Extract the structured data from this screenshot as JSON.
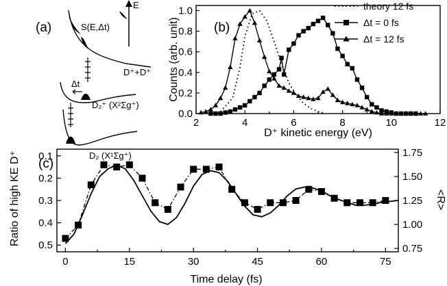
{
  "chart_data": [
    {
      "panel": "(a)",
      "type": "diagram",
      "labels": {
        "energy_axis": "E",
        "final_state": "S(E,Δt)",
        "asymptote": "D⁺+D⁺",
        "delay": "Δt",
        "ion_state": "D₂⁺ (X²Σg⁺)",
        "neutral_state": "D₂ (X¹Σg⁺)"
      }
    },
    {
      "panel": "(b)",
      "type": "line",
      "xlabel": "D⁺ kinetic energy (eV)",
      "ylabel": "Counts (arb. unit)",
      "xlim": [
        2,
        12
      ],
      "ylim": [
        0,
        1.05
      ],
      "xticks": [
        "2",
        "4",
        "6",
        "8",
        "10",
        "12"
      ],
      "yticks": [
        "0.0",
        "0.2",
        "0.4",
        "0.6",
        "0.8",
        "1.0"
      ],
      "legend_position": "top-right",
      "series": [
        {
          "name": "theory 12 fs",
          "style": "dotted",
          "x": [
            3.0,
            3.5,
            3.8,
            4.0,
            4.3,
            4.6,
            4.9,
            5.2,
            5.5,
            5.8,
            6.1,
            6.4,
            6.7,
            7.0,
            7.3
          ],
          "y": [
            0.02,
            0.15,
            0.45,
            0.75,
            0.97,
            1.0,
            0.9,
            0.7,
            0.48,
            0.3,
            0.18,
            0.1,
            0.05,
            0.02,
            0.0
          ]
        },
        {
          "name": "Δt = 0 fs",
          "marker": "square",
          "x": [
            2.6,
            2.8,
            3.0,
            3.2,
            3.4,
            3.6,
            3.8,
            4.0,
            4.2,
            4.4,
            4.6,
            4.8,
            5.0,
            5.2,
            5.4,
            5.5,
            5.6,
            5.8,
            6.0,
            6.2,
            6.4,
            6.6,
            6.8,
            7.0,
            7.2,
            7.4,
            7.6,
            7.8,
            8.0,
            8.2,
            8.4,
            8.6,
            8.8,
            9.0,
            9.2,
            9.4,
            9.6,
            9.8,
            10.0,
            10.2,
            10.4,
            10.6,
            10.8,
            11.0
          ],
          "y": [
            0.0,
            0.0,
            0.0,
            0.01,
            0.02,
            0.04,
            0.06,
            0.08,
            0.12,
            0.16,
            0.2,
            0.27,
            0.33,
            0.38,
            0.43,
            0.54,
            0.38,
            0.62,
            0.68,
            0.76,
            0.8,
            0.83,
            0.87,
            0.9,
            0.93,
            0.86,
            0.78,
            0.63,
            0.56,
            0.48,
            0.44,
            0.33,
            0.25,
            0.16,
            0.09,
            0.06,
            0.03,
            0.02,
            0.01,
            0.0,
            0.0,
            0.0,
            0.0,
            0.0
          ]
        },
        {
          "name": "Δt = 12 fs",
          "marker": "triangle",
          "x": [
            2.2,
            2.4,
            2.6,
            2.8,
            3.0,
            3.2,
            3.4,
            3.6,
            3.8,
            4.0,
            4.2,
            4.4,
            4.6,
            4.8,
            5.0,
            5.2,
            5.4,
            5.6,
            5.8,
            6.0,
            6.2,
            6.4,
            6.6,
            6.8,
            7.0,
            7.2,
            7.4,
            7.6,
            7.8,
            8.0,
            8.2,
            8.4,
            8.6,
            8.8,
            9.0,
            9.2,
            9.4,
            9.6,
            9.8,
            10.0,
            10.2,
            10.4,
            10.6,
            10.8,
            11.0,
            11.2,
            11.4
          ],
          "y": [
            0.01,
            0.02,
            0.04,
            0.08,
            0.15,
            0.25,
            0.45,
            0.73,
            0.87,
            0.94,
            1.0,
            0.88,
            0.71,
            0.55,
            0.41,
            0.34,
            0.27,
            0.25,
            0.22,
            0.2,
            0.17,
            0.16,
            0.15,
            0.14,
            0.15,
            0.21,
            0.24,
            0.18,
            0.13,
            0.11,
            0.1,
            0.09,
            0.08,
            0.06,
            0.04,
            0.02,
            0.01,
            0.0,
            0.0,
            0.0,
            0.0,
            0.0,
            0.0,
            0.0,
            0.0,
            0.0,
            0.0
          ]
        }
      ]
    },
    {
      "panel": "(c)",
      "type": "line",
      "xlabel": "Time delay (fs)",
      "ylabel": "Ratio of high KE D⁺",
      "y2label": "<R>",
      "xlim": [
        -2,
        78
      ],
      "ylim": [
        0.53,
        0.07
      ],
      "y_inverted": true,
      "y2lim": [
        0.715,
        1.785
      ],
      "xticks": [
        "0",
        "15",
        "30",
        "45",
        "60",
        "75"
      ],
      "yticks": [
        "0.1",
        "0.2",
        "0.3",
        "0.4",
        "0.5"
      ],
      "y2ticks": [
        "0.75",
        "1.00",
        "1.25",
        "1.50",
        "1.75"
      ],
      "series": [
        {
          "name": "ratio",
          "marker": "square",
          "style": "dash-dot",
          "x": [
            0,
            3,
            6,
            9,
            12,
            15,
            18,
            21,
            24,
            27,
            30,
            33,
            36,
            39,
            42,
            45,
            48,
            51,
            54,
            57,
            60,
            63,
            66,
            69,
            72,
            75
          ],
          "y": [
            0.47,
            0.41,
            0.23,
            0.14,
            0.15,
            0.14,
            0.2,
            0.31,
            0.34,
            0.24,
            0.16,
            0.16,
            0.15,
            0.25,
            0.31,
            0.34,
            0.31,
            0.31,
            0.3,
            0.25,
            0.26,
            0.29,
            0.31,
            0.31,
            0.31,
            0.3
          ]
        },
        {
          "name": "<R>",
          "style": "solid",
          "axis": "right",
          "x": [
            0,
            2,
            4,
            6,
            8,
            10,
            12,
            14,
            16,
            18,
            20,
            22,
            24,
            26,
            28,
            30,
            32,
            34,
            36,
            38,
            40,
            42,
            44,
            46,
            48,
            50,
            52,
            54,
            56,
            58,
            60,
            62,
            64,
            66,
            68,
            70,
            72,
            74,
            76,
            78
          ],
          "y": [
            0.8,
            0.9,
            1.1,
            1.32,
            1.5,
            1.58,
            1.62,
            1.58,
            1.46,
            1.3,
            1.14,
            1.03,
            1.0,
            1.07,
            1.22,
            1.4,
            1.52,
            1.56,
            1.54,
            1.45,
            1.32,
            1.19,
            1.1,
            1.08,
            1.12,
            1.2,
            1.3,
            1.37,
            1.39,
            1.38,
            1.35,
            1.3,
            1.26,
            1.23,
            1.2,
            1.2,
            1.21,
            1.23,
            1.24,
            1.25
          ]
        }
      ]
    }
  ]
}
